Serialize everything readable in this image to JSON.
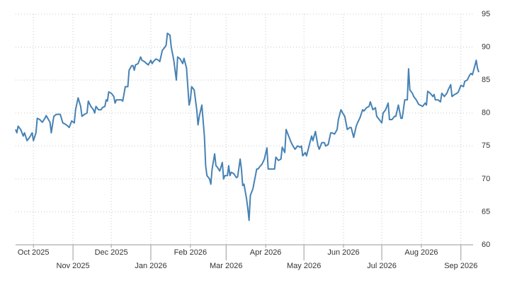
{
  "chart_data": {
    "type": "line",
    "x": [
      0,
      1,
      2,
      4,
      6,
      7,
      9,
      11,
      13,
      14,
      16,
      17,
      19,
      21,
      23,
      24,
      27,
      28,
      30,
      32,
      35,
      37,
      39,
      41,
      42,
      44,
      46,
      47,
      49,
      51,
      52,
      54,
      56,
      57,
      59,
      61,
      62,
      63,
      65,
      67,
      68,
      70,
      71,
      72,
      73,
      75,
      77,
      78,
      79,
      81,
      83,
      84,
      86,
      88,
      89,
      91,
      92,
      93,
      94,
      96,
      98,
      99,
      101,
      102,
      104,
      106,
      107,
      108,
      110,
      112,
      113,
      115,
      117,
      118,
      119,
      121,
      122,
      124,
      126,
      127,
      129,
      131,
      132,
      134,
      136,
      137,
      138,
      140,
      142,
      143,
      144,
      146,
      148,
      149,
      150,
      152,
      153,
      154,
      156,
      157,
      158,
      160,
      162,
      163,
      164,
      166,
      167,
      168,
      169,
      171,
      173,
      174,
      176,
      177,
      178,
      179,
      181,
      182,
      183,
      184,
      186,
      187,
      189,
      190,
      192,
      193,
      195,
      197,
      198,
      199,
      201,
      203,
      204,
      206,
      208,
      209,
      211,
      212,
      213,
      215,
      216,
      218,
      219,
      221,
      223,
      224,
      225,
      227,
      228,
      230,
      232,
      233,
      235,
      237,
      238,
      240,
      242,
      243,
      245,
      247,
      248,
      250,
      252,
      253,
      255,
      257,
      258,
      260,
      262,
      263,
      265,
      267,
      268,
      270,
      272,
      273,
      275,
      277,
      278,
      280,
      282,
      283,
      285,
      287,
      288,
      290,
      292,
      293,
      295,
      297,
      298,
      300,
      302,
      303,
      305,
      307,
      308,
      309,
      311,
      312,
      314,
      316,
      317,
      319,
      321,
      322,
      323,
      325,
      327,
      328,
      329,
      331,
      333,
      334,
      336,
      338,
      339,
      341,
      342,
      344,
      346,
      347,
      349,
      351,
      352,
      354,
      356,
      357,
      358,
      360,
      361,
      362,
      363
    ],
    "series": [
      {
        "color": "#4682b4",
        "values": [
          77.5,
          77,
          78,
          77.5,
          76.5,
          77,
          75.8,
          76.3,
          77,
          75.8,
          77,
          79.2,
          79,
          78.6,
          79.2,
          79.6,
          78.6,
          77,
          79.5,
          79.8,
          79.8,
          78.5,
          78.3,
          78,
          77.8,
          78.8,
          78.5,
          80.5,
          82.3,
          81,
          79.5,
          79.8,
          80,
          81.8,
          81,
          80.5,
          80,
          81,
          80.5,
          80.5,
          80.8,
          81,
          82,
          81.8,
          83.2,
          83,
          82.5,
          81.5,
          82,
          82,
          82,
          81.8,
          84,
          84,
          86.5,
          87.2,
          87.2,
          86.5,
          87.3,
          87.5,
          88.5,
          88,
          87.8,
          87.6,
          87.3,
          88,
          87.5,
          87.8,
          88.2,
          88,
          87.8,
          89.5,
          90,
          90.3,
          92.1,
          91.8,
          90,
          88,
          85,
          88.5,
          88.2,
          87.5,
          88.3,
          86.8,
          81.2,
          82,
          84,
          83.5,
          80.5,
          78.2,
          79.5,
          81.2,
          76.5,
          72,
          70.5,
          70,
          69.2,
          71.5,
          73.8,
          72,
          71.8,
          71.2,
          72.5,
          70,
          70.5,
          70.5,
          72,
          70.5,
          71,
          70.8,
          70.2,
          70.3,
          73,
          71.5,
          69,
          69.2,
          67,
          65.5,
          63.7,
          67.5,
          68.5,
          69.5,
          71.5,
          71.5,
          72,
          72.2,
          73,
          74.7,
          71.5,
          71.5,
          71.5,
          71.5,
          73.3,
          72.8,
          73,
          74.8,
          74,
          77.5,
          77,
          76,
          75.5,
          74.8,
          74.5,
          75,
          74.8,
          75,
          73.5,
          74,
          73.5,
          75,
          76.5,
          75.8,
          77.2,
          75,
          74.5,
          75.5,
          75.5,
          75,
          75.2,
          77,
          77,
          76.8,
          77.5,
          79,
          80.5,
          79.8,
          79.5,
          77.5,
          77.8,
          77.8,
          76.3,
          78,
          78.5,
          79.3,
          80.5,
          80.3,
          80.8,
          81,
          81.7,
          80.5,
          80.8,
          79.5,
          79,
          78.5,
          80,
          80.5,
          81.5,
          79,
          79,
          79.5,
          79.5,
          81.2,
          79.2,
          79.2,
          82,
          82,
          86.7,
          83.5,
          83,
          82.5,
          82,
          81.3,
          81.2,
          81,
          81.5,
          81.2,
          83.3,
          83,
          82.5,
          82.8,
          82,
          82,
          81.7,
          83,
          82.5,
          83,
          83.5,
          84.3,
          82.5,
          82.8,
          83,
          83.2,
          84.2,
          84,
          84.8,
          85,
          85.8,
          86,
          85.8,
          87.2,
          88,
          86.8,
          86.2
        ]
      }
    ],
    "xlim": [
      0,
      363
    ],
    "xticks": [
      {
        "value": 14,
        "label": "Oct 2025"
      },
      {
        "value": 45,
        "label": "Nov 2025"
      },
      {
        "value": 75,
        "label": "Dec 2025"
      },
      {
        "value": 106,
        "label": "Jan 2026"
      },
      {
        "value": 137,
        "label": "Feb 2026"
      },
      {
        "value": 165,
        "label": "Mar 2026"
      },
      {
        "value": 196,
        "label": "Apr 2026"
      },
      {
        "value": 226,
        "label": "May 2026"
      },
      {
        "value": 257,
        "label": "Jun 2026"
      },
      {
        "value": 287,
        "label": "Jul 2026"
      },
      {
        "value": 318,
        "label": "Aug 2026"
      },
      {
        "value": 349,
        "label": "Sep 2026"
      }
    ],
    "ylim": [
      60,
      95
    ],
    "yticks": [
      60,
      65,
      70,
      75,
      80,
      85,
      90,
      95
    ],
    "grid": true
  }
}
